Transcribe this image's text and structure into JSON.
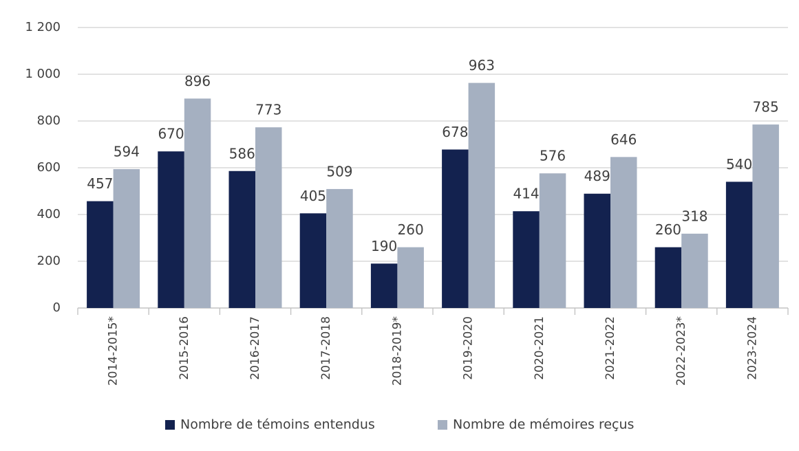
{
  "chart_data": {
    "type": "bar",
    "categories": [
      "2014-2015*",
      "2015-2016",
      "2016-2017",
      "2017-2018",
      "2018-2019*",
      "2019-2020",
      "2020-2021",
      "2021-2022",
      "2022-2023*",
      "2023-2024"
    ],
    "series": [
      {
        "name": "Nombre de témoins entendus",
        "color": "#13224f",
        "values": [
          457,
          670,
          586,
          405,
          190,
          678,
          414,
          489,
          260,
          540
        ]
      },
      {
        "name": "Nombre de mémoires reçus",
        "color": "#a5b0c1",
        "values": [
          594,
          896,
          773,
          509,
          260,
          963,
          576,
          646,
          318,
          785
        ]
      }
    ],
    "ylim": [
      0,
      1200
    ],
    "yticks": [
      0,
      200,
      400,
      600,
      800,
      {
        "value": 1000,
        "label": "1 000"
      },
      {
        "value": 1200,
        "label": "1 200"
      }
    ],
    "grid": true,
    "legend": "bottom"
  }
}
